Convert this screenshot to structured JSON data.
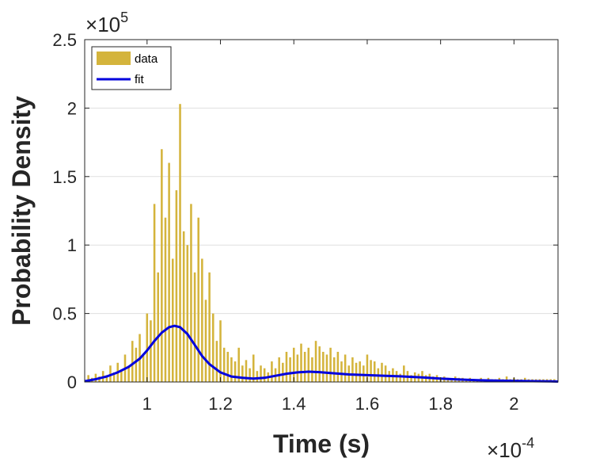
{
  "chart_data": {
    "type": "bar",
    "xlabel": "Time (s)",
    "ylabel": "Probability Density",
    "x_exponent_label": {
      "times": "×",
      "base": "10",
      "power": "-4"
    },
    "y_exponent_label": {
      "times": "×",
      "base": "10",
      "power": "5"
    },
    "xlim": [
      0.83,
      2.12
    ],
    "ylim": [
      0,
      2.5
    ],
    "x_ticks": [
      1,
      1.2,
      1.4,
      1.6,
      1.8,
      2
    ],
    "x_tick_labels": [
      "1",
      "1.2",
      "1.4",
      "1.6",
      "1.8",
      "2"
    ],
    "y_ticks": [
      0,
      0.5,
      1,
      1.5,
      2,
      2.5
    ],
    "y_tick_labels": [
      "0",
      "0.5",
      "1",
      "1.5",
      "2",
      "2.5"
    ],
    "grid": "horizontal",
    "legend_position": "top-left",
    "series": [
      {
        "name": "data",
        "kind": "histogram",
        "color": "#D4B43C",
        "x": [
          0.84,
          0.85,
          0.86,
          0.87,
          0.88,
          0.89,
          0.9,
          0.91,
          0.92,
          0.93,
          0.94,
          0.95,
          0.96,
          0.97,
          0.98,
          0.99,
          1.0,
          1.01,
          1.02,
          1.03,
          1.04,
          1.05,
          1.06,
          1.07,
          1.08,
          1.09,
          1.1,
          1.11,
          1.12,
          1.13,
          1.14,
          1.15,
          1.16,
          1.17,
          1.18,
          1.19,
          1.2,
          1.21,
          1.22,
          1.23,
          1.24,
          1.25,
          1.26,
          1.27,
          1.28,
          1.29,
          1.3,
          1.31,
          1.32,
          1.33,
          1.34,
          1.35,
          1.36,
          1.37,
          1.38,
          1.39,
          1.4,
          1.41,
          1.42,
          1.43,
          1.44,
          1.45,
          1.46,
          1.47,
          1.48,
          1.49,
          1.5,
          1.51,
          1.52,
          1.53,
          1.54,
          1.55,
          1.56,
          1.57,
          1.58,
          1.59,
          1.6,
          1.61,
          1.62,
          1.63,
          1.64,
          1.65,
          1.66,
          1.67,
          1.68,
          1.69,
          1.7,
          1.71,
          1.72,
          1.73,
          1.74,
          1.75,
          1.76,
          1.77,
          1.78,
          1.79,
          1.8,
          1.81,
          1.82,
          1.83,
          1.84,
          1.85,
          1.86,
          1.87,
          1.88,
          1.89,
          1.9,
          1.91,
          1.92,
          1.93,
          1.94,
          1.95,
          1.96,
          1.97,
          1.98,
          1.99,
          2.0,
          2.01,
          2.02,
          2.03,
          2.04,
          2.05,
          2.06,
          2.07,
          2.08,
          2.09,
          2.1,
          2.11
        ],
        "values": [
          0.05,
          0.03,
          0.06,
          0.04,
          0.08,
          0.05,
          0.12,
          0.07,
          0.14,
          0.09,
          0.2,
          0.12,
          0.3,
          0.25,
          0.35,
          0.2,
          0.5,
          0.45,
          1.3,
          0.8,
          1.7,
          1.2,
          1.6,
          0.9,
          1.4,
          2.03,
          1.1,
          1.0,
          1.3,
          0.8,
          1.2,
          0.9,
          0.6,
          0.8,
          0.5,
          0.3,
          0.45,
          0.25,
          0.22,
          0.18,
          0.15,
          0.25,
          0.12,
          0.16,
          0.1,
          0.2,
          0.08,
          0.12,
          0.1,
          0.07,
          0.15,
          0.1,
          0.18,
          0.14,
          0.22,
          0.18,
          0.25,
          0.2,
          0.28,
          0.22,
          0.25,
          0.18,
          0.3,
          0.26,
          0.22,
          0.2,
          0.25,
          0.18,
          0.22,
          0.15,
          0.2,
          0.12,
          0.18,
          0.14,
          0.15,
          0.12,
          0.2,
          0.16,
          0.15,
          0.1,
          0.14,
          0.12,
          0.08,
          0.1,
          0.08,
          0.06,
          0.12,
          0.08,
          0.05,
          0.07,
          0.06,
          0.08,
          0.05,
          0.06,
          0.04,
          0.05,
          0.03,
          0.04,
          0.03,
          0.02,
          0.04,
          0.03,
          0.03,
          0.02,
          0.03,
          0.02,
          0.02,
          0.03,
          0.02,
          0.03,
          0.02,
          0.02,
          0.03,
          0.02,
          0.04,
          0.02,
          0.03,
          0.02,
          0.02,
          0.03,
          0.02,
          0.02,
          0.02,
          0.02,
          0.02,
          0.02,
          0.02,
          0.02
        ]
      },
      {
        "name": "fit",
        "kind": "line",
        "color": "#0000DD",
        "x": [
          0.83,
          0.86,
          0.89,
          0.92,
          0.95,
          0.98,
          1.0,
          1.02,
          1.04,
          1.06,
          1.075,
          1.09,
          1.11,
          1.13,
          1.15,
          1.17,
          1.2,
          1.23,
          1.26,
          1.29,
          1.32,
          1.35,
          1.38,
          1.41,
          1.44,
          1.47,
          1.5,
          1.55,
          1.6,
          1.65,
          1.7,
          1.75,
          1.8,
          1.85,
          1.9,
          1.95,
          2.0,
          2.05,
          2.1,
          2.12
        ],
        "values": [
          0.005,
          0.02,
          0.04,
          0.07,
          0.11,
          0.17,
          0.23,
          0.3,
          0.36,
          0.4,
          0.41,
          0.4,
          0.35,
          0.27,
          0.19,
          0.13,
          0.07,
          0.04,
          0.03,
          0.025,
          0.03,
          0.045,
          0.06,
          0.07,
          0.075,
          0.072,
          0.065,
          0.055,
          0.05,
          0.045,
          0.04,
          0.033,
          0.025,
          0.018,
          0.013,
          0.01,
          0.008,
          0.006,
          0.004,
          0.003
        ]
      }
    ]
  }
}
